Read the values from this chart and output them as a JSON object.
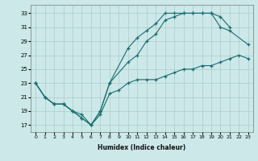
{
  "xlabel": "Humidex (Indice chaleur)",
  "bg_color": "#cce8e8",
  "grid_color": "#aacccc",
  "line_color": "#1a6e6e",
  "xlim": [
    -0.5,
    23.5
  ],
  "ylim": [
    16,
    34.2
  ],
  "xticks": [
    0,
    1,
    2,
    3,
    4,
    5,
    6,
    7,
    8,
    9,
    10,
    11,
    12,
    13,
    14,
    15,
    16,
    17,
    18,
    19,
    20,
    21,
    22,
    23
  ],
  "yticks": [
    17,
    19,
    21,
    23,
    25,
    27,
    29,
    31,
    33
  ],
  "series": [
    {
      "x": [
        0,
        1,
        2,
        3,
        4,
        5,
        6,
        7,
        8,
        10,
        11,
        12,
        13,
        14,
        15,
        16,
        17,
        18,
        19,
        20,
        21
      ],
      "y": [
        23,
        21,
        20,
        20,
        19,
        18,
        17,
        19,
        23,
        28,
        29.5,
        30.5,
        31.5,
        33,
        33,
        33,
        33,
        33,
        33,
        32.5,
        31
      ]
    },
    {
      "x": [
        0,
        1,
        2,
        3,
        4,
        5,
        6,
        7,
        8,
        10,
        11,
        12,
        13,
        14,
        15,
        16,
        17,
        18,
        19,
        20,
        21,
        23
      ],
      "y": [
        23,
        21,
        20,
        20,
        19,
        18,
        17,
        19,
        23,
        26,
        27,
        29,
        30,
        32,
        32.5,
        33,
        33,
        33,
        33,
        31,
        30.5,
        28.5
      ]
    },
    {
      "x": [
        0,
        1,
        2,
        3,
        4,
        5,
        6,
        7,
        8,
        9,
        10,
        11,
        12,
        13,
        14,
        15,
        16,
        17,
        18,
        19,
        20,
        21,
        22,
        23
      ],
      "y": [
        23,
        21,
        20,
        20,
        19,
        18.5,
        17,
        18.5,
        21.5,
        22,
        23,
        23.5,
        23.5,
        23.5,
        24,
        24.5,
        25,
        25,
        25.5,
        25.5,
        26,
        26.5,
        27,
        26.5
      ]
    }
  ]
}
